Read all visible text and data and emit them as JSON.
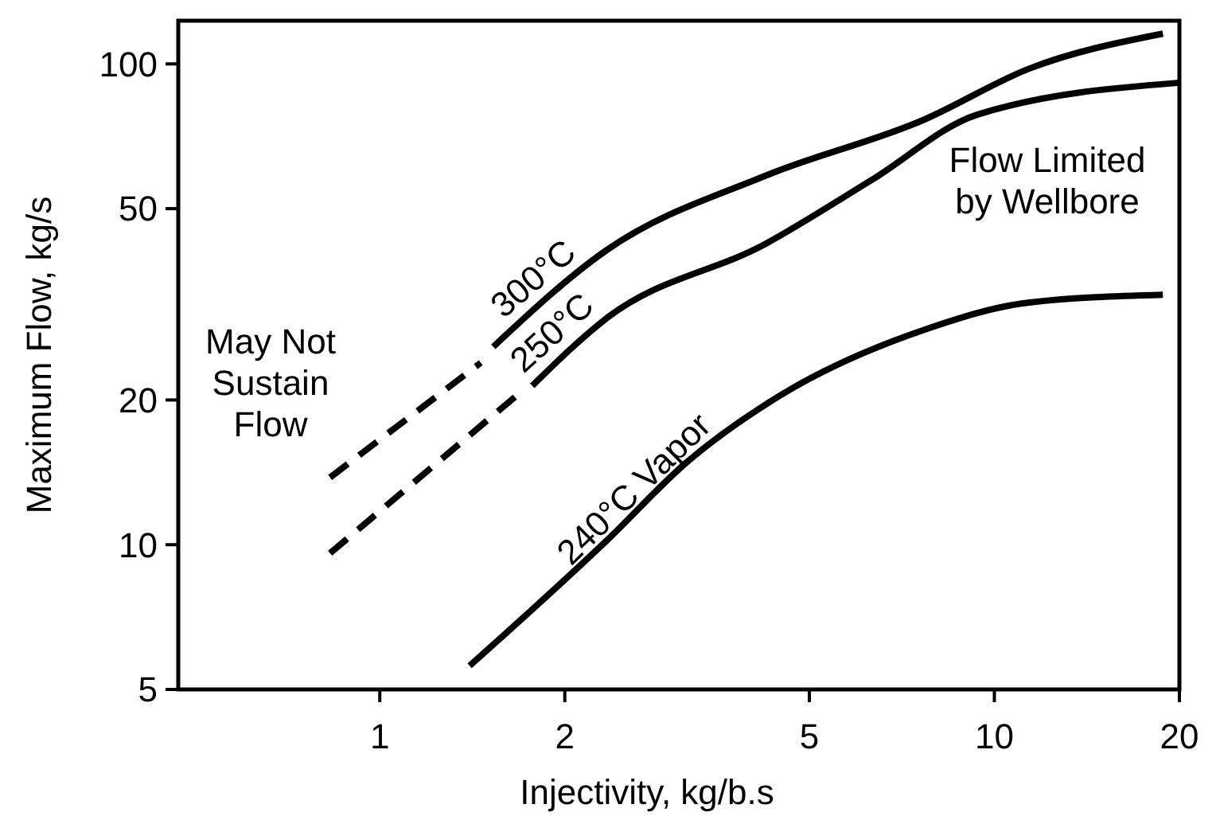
{
  "chart_data": {
    "type": "line",
    "xlabel": "Injectivity, kg/b.s",
    "ylabel": "Maximum Flow, kg/s",
    "log": "xy",
    "xlim": [
      0.47,
      20
    ],
    "xticks": [
      1,
      2,
      5,
      10,
      20
    ],
    "ylim": [
      5,
      123
    ],
    "yticks": [
      5,
      10,
      20,
      50,
      100
    ],
    "grid": false,
    "series": [
      {
        "color": "#000000",
        "line_style": "dashed",
        "x": [
          0.83,
          1.46
        ],
        "values": [
          13.8,
          23.9
        ]
      },
      {
        "name": "300°C",
        "color": "#000000",
        "line_style": "solid",
        "x": [
          1.53,
          2.34,
          4.25,
          7.69,
          11.4,
          18.8
        ],
        "values": [
          25.8,
          41,
          58.6,
          76.6,
          97.8,
          115.6
        ]
      },
      {
        "color": "#000000",
        "line_style": "dashed",
        "x": [
          0.83,
          1.66
        ],
        "values": [
          9.6,
          20.3
        ]
      },
      {
        "name": "250°C",
        "color": "#000000",
        "line_style": "solid",
        "x": [
          1.77,
          2.34,
          4.25,
          6.32,
          9.37,
          20
        ],
        "values": [
          21.4,
          29.6,
          42.3,
          57.4,
          78.4,
          91.4
        ]
      },
      {
        "name": "240°C Vapor",
        "color": "#000000",
        "line_style": "solid",
        "x": [
          1.4,
          2.34,
          3.15,
          4.5,
          7.69,
          11.4,
          18.8
        ],
        "values": [
          5.6,
          10.2,
          14.8,
          20.5,
          28,
          31.9,
          33.1
        ]
      }
    ],
    "annotations": [
      "May Not Sustain Flow",
      "Flow Limited by Wellbore"
    ]
  }
}
